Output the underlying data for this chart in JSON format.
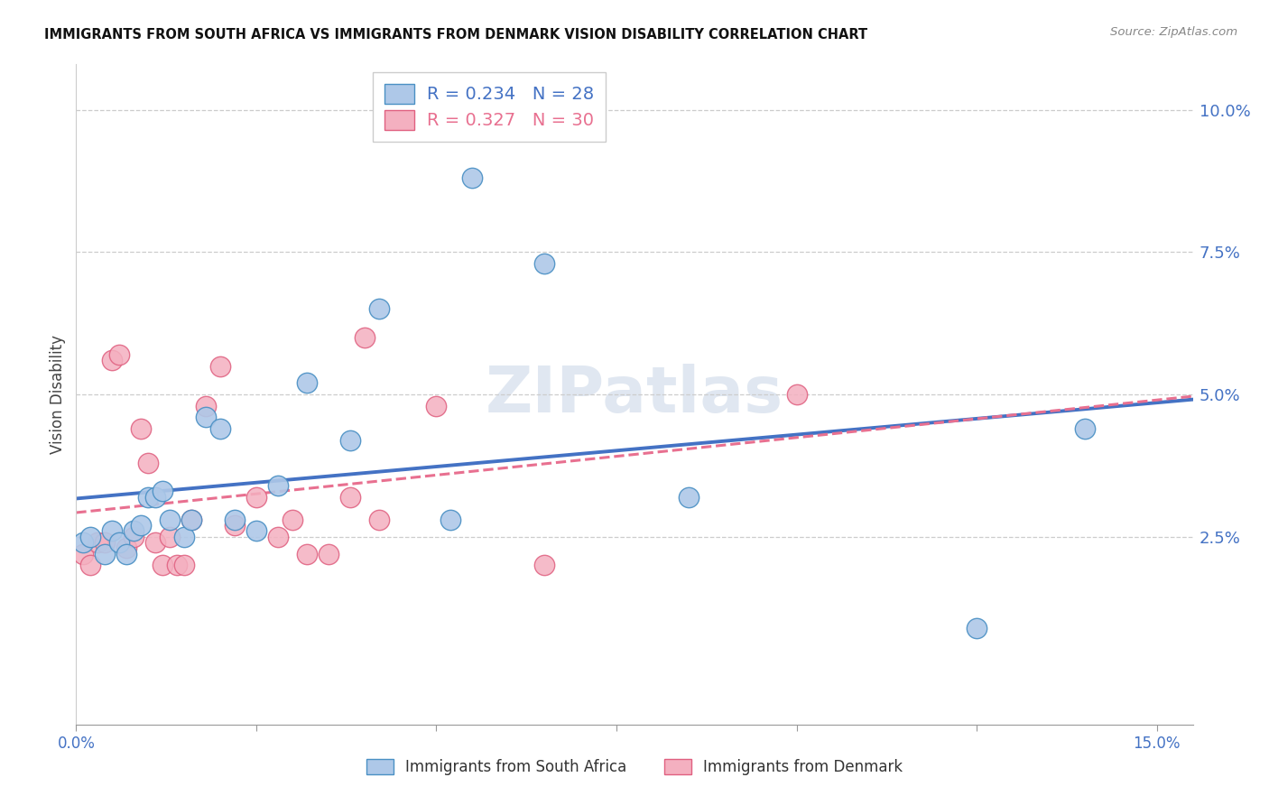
{
  "title": "IMMIGRANTS FROM SOUTH AFRICA VS IMMIGRANTS FROM DENMARK VISION DISABILITY CORRELATION CHART",
  "source": "Source: ZipAtlas.com",
  "ylabel": "Vision Disability",
  "right_yticks": [
    "2.5%",
    "5.0%",
    "7.5%",
    "10.0%"
  ],
  "right_ytick_vals": [
    0.025,
    0.05,
    0.075,
    0.1
  ],
  "R_sa": 0.234,
  "N_sa": 28,
  "R_dk": 0.327,
  "N_dk": 30,
  "color_sa_fill": "#aec8e8",
  "color_dk_fill": "#f4b0c0",
  "color_sa_line": "#4a90c4",
  "color_dk_line": "#e06080",
  "color_sa_trend": "#4472C4",
  "color_dk_trend": "#E87090",
  "watermark_color": "#ccd8e8",
  "sa_x": [
    0.001,
    0.002,
    0.004,
    0.005,
    0.006,
    0.007,
    0.008,
    0.009,
    0.01,
    0.011,
    0.012,
    0.013,
    0.015,
    0.016,
    0.018,
    0.02,
    0.022,
    0.025,
    0.028,
    0.032,
    0.038,
    0.042,
    0.052,
    0.055,
    0.065,
    0.085,
    0.125,
    0.14
  ],
  "sa_y": [
    0.024,
    0.025,
    0.022,
    0.026,
    0.024,
    0.022,
    0.026,
    0.027,
    0.032,
    0.032,
    0.033,
    0.028,
    0.025,
    0.028,
    0.046,
    0.044,
    0.028,
    0.026,
    0.034,
    0.052,
    0.042,
    0.065,
    0.028,
    0.088,
    0.073,
    0.032,
    0.009,
    0.044
  ],
  "dk_x": [
    0.001,
    0.002,
    0.003,
    0.004,
    0.005,
    0.006,
    0.007,
    0.008,
    0.009,
    0.01,
    0.011,
    0.012,
    0.013,
    0.014,
    0.015,
    0.016,
    0.018,
    0.02,
    0.022,
    0.025,
    0.028,
    0.03,
    0.032,
    0.035,
    0.038,
    0.04,
    0.042,
    0.05,
    0.065,
    0.1
  ],
  "dk_y": [
    0.022,
    0.02,
    0.024,
    0.024,
    0.056,
    0.057,
    0.023,
    0.025,
    0.044,
    0.038,
    0.024,
    0.02,
    0.025,
    0.02,
    0.02,
    0.028,
    0.048,
    0.055,
    0.027,
    0.032,
    0.025,
    0.028,
    0.022,
    0.022,
    0.032,
    0.06,
    0.028,
    0.048,
    0.02,
    0.05
  ],
  "xlim": [
    0.0,
    0.155
  ],
  "ylim": [
    -0.008,
    0.108
  ],
  "xtick_positions": [
    0.0,
    0.025,
    0.05,
    0.075,
    0.1,
    0.125,
    0.15
  ],
  "xtick_show_labels": [
    true,
    false,
    false,
    false,
    false,
    false,
    false
  ]
}
